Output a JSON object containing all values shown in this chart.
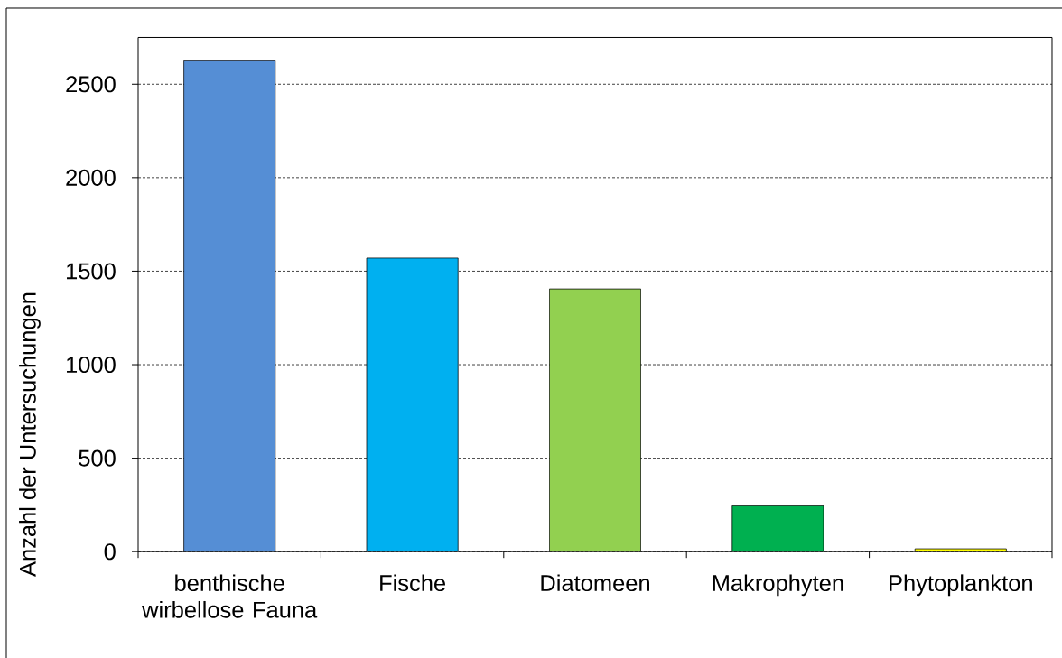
{
  "chart_data": {
    "type": "bar",
    "ylabel": "Anzahl der Untersuchungen",
    "categories": [
      "benthische wirbellose Fauna",
      "Fische",
      "Diatomeen",
      "Makrophyten",
      "Phytoplankton"
    ],
    "values": [
      2625,
      1570,
      1405,
      245,
      15
    ],
    "colors": [
      "#558ed5",
      "#00b0f0",
      "#92d050",
      "#00b050",
      "#ffff00"
    ],
    "ylim": [
      0,
      2750
    ],
    "yticks": [
      0,
      500,
      1000,
      1500,
      2000,
      2500
    ],
    "grid": "y"
  }
}
